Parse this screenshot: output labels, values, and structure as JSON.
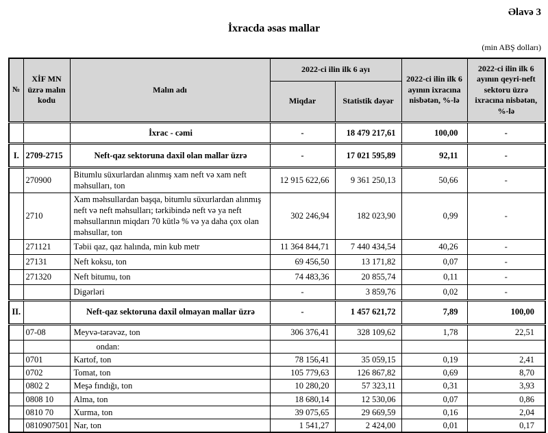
{
  "page": {
    "annex_label": "Əlavə 3",
    "title": "İxracda əsas mallar",
    "unit_note": "(min ABŞ dolları)"
  },
  "table": {
    "headers": {
      "num": "№",
      "code": "XİF MN üzrə malın kodu",
      "name": "Malın adı",
      "period_group": "2022-ci ilin ilk 6 ayı",
      "quantity": "Miqdar",
      "stat_value": "Statistik dəyər",
      "pct_of_total_exports": "2022-ci ilin ilk 6 ayının ixracına nisbətən, %-lə",
      "pct_of_nonoil_exports": "2022-ci ilin ilk 6 ayının qeyri-neft sektoru üzrə ixracına nisbətən, %-lə"
    },
    "rows": [
      {
        "level": "total",
        "num": "",
        "code": "",
        "name": "İxrac - cəmi",
        "qty": "-",
        "value": "18 479 217,61",
        "pct_total": "100,00",
        "pct_nonoil": "-"
      },
      {
        "level": "section",
        "num": "I.",
        "code": "2709-2715",
        "name": "Neft-qaz sektoruna daxil olan mallar üzrə",
        "qty": "-",
        "value": "17 021 595,89",
        "pct_total": "92,11",
        "pct_nonoil": "-"
      },
      {
        "level": "item",
        "num": "",
        "code": "270900",
        "name": "Bitumlu süxurlardan alınmış xam neft və xam neft məhsulları, ton",
        "qty": "12 915 622,66",
        "value": "9 361 250,13",
        "pct_total": "50,66",
        "pct_nonoil": "-"
      },
      {
        "level": "item",
        "num": "",
        "code": "2710",
        "name": "Xam məhsullardan başqa, bitumlu süxurlardan alınmış neft və neft məhsulları; tərkibində neft və ya neft məhsullarının miqdarı 70 kütlə % və ya daha çox olan məhsullar, ton",
        "qty": "302 246,94",
        "value": "182 023,90",
        "pct_total": "0,99",
        "pct_nonoil": "-"
      },
      {
        "level": "item",
        "num": "",
        "code": "271121",
        "name": "Təbii qaz, qaz halında, min kub metr",
        "qty": "11 364 844,71",
        "value": "7 440 434,54",
        "pct_total": "40,26",
        "pct_nonoil": "-"
      },
      {
        "level": "item",
        "num": "",
        "code": "27131",
        "name": "Neft koksu, ton",
        "qty": "69 456,50",
        "value": "13 171,82",
        "pct_total": "0,07",
        "pct_nonoil": "-"
      },
      {
        "level": "item",
        "num": "",
        "code": "271320",
        "name": "Neft bitumu, ton",
        "qty": "74 483,36",
        "value": "20 855,74",
        "pct_total": "0,11",
        "pct_nonoil": "-"
      },
      {
        "level": "item",
        "num": "",
        "code": "",
        "name": "Digərləri",
        "qty": "-",
        "value": "3 859,76",
        "pct_total": "0,02",
        "pct_nonoil": "-"
      },
      {
        "level": "section",
        "num": "II.",
        "code": "",
        "name": "Neft-qaz sektoruna daxil olmayan mallar üzrə",
        "qty": "-",
        "value": "1 457 621,72",
        "pct_total": "7,89",
        "pct_nonoil": "100,00"
      },
      {
        "level": "item",
        "num": "",
        "code": "07-08",
        "name": "Meyvə-tərəvəz, ton",
        "qty": "306 376,41",
        "value": "328 109,62",
        "pct_total": "1,78",
        "pct_nonoil": "22,51"
      },
      {
        "level": "label",
        "num": "",
        "code": "",
        "name": "ondan:",
        "qty": "",
        "value": "",
        "pct_total": "",
        "pct_nonoil": ""
      },
      {
        "level": "subitem",
        "num": "",
        "code": "0701",
        "name": "Kartof, ton",
        "qty": "78 156,41",
        "value": "35 059,15",
        "pct_total": "0,19",
        "pct_nonoil": "2,41"
      },
      {
        "level": "subitem",
        "num": "",
        "code": "0702",
        "name": "Tomat, ton",
        "qty": "105 779,63",
        "value": "126 867,82",
        "pct_total": "0,69",
        "pct_nonoil": "8,70"
      },
      {
        "level": "subitem",
        "num": "",
        "code": "0802 2",
        "name": "Meşə fındığı, ton",
        "qty": "10 280,20",
        "value": "57 323,11",
        "pct_total": "0,31",
        "pct_nonoil": "3,93"
      },
      {
        "level": "subitem",
        "num": "",
        "code": "0808 10",
        "name": "Alma, ton",
        "qty": "18 680,14",
        "value": "12 530,06",
        "pct_total": "0,07",
        "pct_nonoil": "0,86"
      },
      {
        "level": "subitem",
        "num": "",
        "code": "0810 70",
        "name": "Xurma, ton",
        "qty": "39 075,65",
        "value": "29 669,59",
        "pct_total": "0,16",
        "pct_nonoil": "2,04"
      },
      {
        "level": "subitem",
        "num": "",
        "code": "0810907501",
        "name": "Nar, ton",
        "qty": "1 541,27",
        "value": "2 424,00",
        "pct_total": "0,01",
        "pct_nonoil": "0,17"
      }
    ]
  }
}
